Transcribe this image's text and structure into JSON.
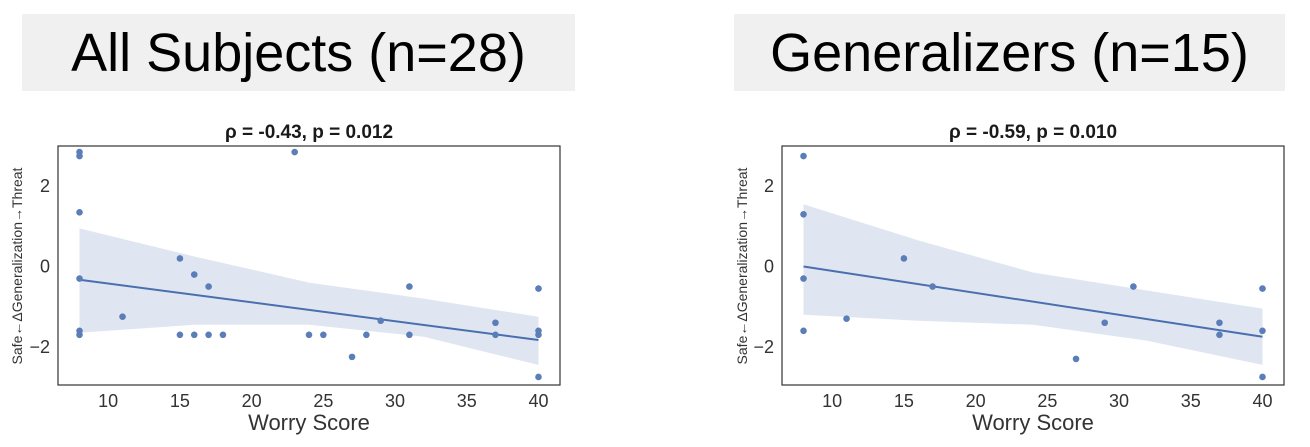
{
  "panels": [
    {
      "heading": "All Subjects (n=28)"
    },
    {
      "heading": "Generalizers (n=15)"
    }
  ],
  "chart_data": [
    {
      "type": "scatter",
      "title": "ρ = -0.43, p = 0.012",
      "xlabel": "Worry Score",
      "ylabel": "Safe←ΔGeneralization→Threat",
      "xlim": [
        6.5,
        41.5
      ],
      "ylim": [
        -2.95,
        3.0
      ],
      "xticks": [
        10,
        15,
        20,
        25,
        30,
        35,
        40
      ],
      "yticks": [
        -2,
        0,
        2
      ],
      "points": [
        {
          "x": 8,
          "y": 2.85
        },
        {
          "x": 8,
          "y": 2.75
        },
        {
          "x": 8,
          "y": 1.35
        },
        {
          "x": 8,
          "y": -0.3
        },
        {
          "x": 8,
          "y": -1.6
        },
        {
          "x": 8,
          "y": -1.7
        },
        {
          "x": 11,
          "y": -1.25
        },
        {
          "x": 15,
          "y": 0.2
        },
        {
          "x": 15,
          "y": -1.7
        },
        {
          "x": 16,
          "y": -0.2
        },
        {
          "x": 16,
          "y": -1.7
        },
        {
          "x": 17,
          "y": -0.5
        },
        {
          "x": 17,
          "y": -1.7
        },
        {
          "x": 18,
          "y": -1.7
        },
        {
          "x": 23,
          "y": 2.85
        },
        {
          "x": 24,
          "y": -1.7
        },
        {
          "x": 25,
          "y": -1.7
        },
        {
          "x": 27,
          "y": -2.25
        },
        {
          "x": 28,
          "y": -1.7
        },
        {
          "x": 29,
          "y": -1.35
        },
        {
          "x": 31,
          "y": -0.5
        },
        {
          "x": 31,
          "y": -1.7
        },
        {
          "x": 37,
          "y": -1.4
        },
        {
          "x": 37,
          "y": -1.7
        },
        {
          "x": 40,
          "y": -0.55
        },
        {
          "x": 40,
          "y": -1.6
        },
        {
          "x": 40,
          "y": -1.7
        },
        {
          "x": 40,
          "y": -2.75
        }
      ],
      "regression": {
        "x": [
          8,
          40
        ],
        "y": [
          -0.33,
          -1.83
        ]
      },
      "ci": {
        "x": [
          8,
          16,
          24,
          32,
          40
        ],
        "upper": [
          0.95,
          0.25,
          -0.4,
          -0.8,
          -1.25
        ],
        "lower": [
          -1.65,
          -1.45,
          -1.45,
          -1.75,
          -2.45
        ]
      },
      "colors": {
        "point": "#5b7db8",
        "line": "#4a6fae",
        "band": "#dfe6f2"
      }
    },
    {
      "type": "scatter",
      "title": "ρ = -0.59, p = 0.010",
      "xlabel": "Worry Score",
      "ylabel": "Safe←ΔGeneralization→Threat",
      "xlim": [
        6.5,
        41.5
      ],
      "ylim": [
        -2.95,
        3.0
      ],
      "xticks": [
        10,
        15,
        20,
        25,
        30,
        35,
        40
      ],
      "yticks": [
        -2,
        0,
        2
      ],
      "points": [
        {
          "x": 8,
          "y": 2.75
        },
        {
          "x": 8,
          "y": 1.3
        },
        {
          "x": 8,
          "y": -0.3
        },
        {
          "x": 8,
          "y": -1.6
        },
        {
          "x": 11,
          "y": -1.3
        },
        {
          "x": 15,
          "y": 0.2
        },
        {
          "x": 17,
          "y": -0.5
        },
        {
          "x": 27,
          "y": -2.3
        },
        {
          "x": 29,
          "y": -1.4
        },
        {
          "x": 31,
          "y": -0.5
        },
        {
          "x": 37,
          "y": -1.4
        },
        {
          "x": 37,
          "y": -1.7
        },
        {
          "x": 40,
          "y": -0.55
        },
        {
          "x": 40,
          "y": -1.6
        },
        {
          "x": 40,
          "y": -2.75
        }
      ],
      "regression": {
        "x": [
          8,
          40
        ],
        "y": [
          0.0,
          -1.75
        ]
      },
      "ci": {
        "x": [
          8,
          16,
          24,
          32,
          40
        ],
        "upper": [
          1.55,
          0.65,
          -0.15,
          -0.6,
          -1.05
        ],
        "lower": [
          -1.2,
          -1.35,
          -1.45,
          -1.85,
          -2.45
        ]
      },
      "colors": {
        "point": "#5b7db8",
        "line": "#4a6fae",
        "band": "#dfe6f2"
      }
    }
  ]
}
